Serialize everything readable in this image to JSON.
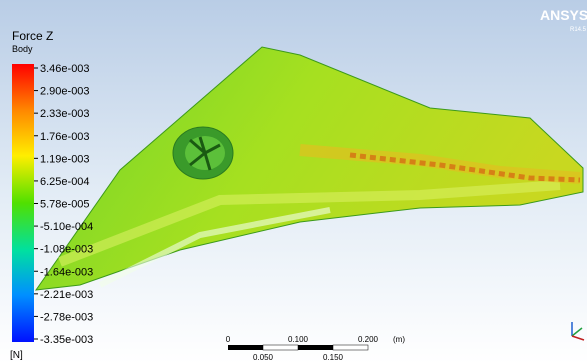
{
  "legend": {
    "title": "Force Z",
    "subtitle": "Body",
    "unit": "[N]",
    "levels": [
      "3.46e-003",
      "2.90e-003",
      "2.33e-003",
      "1.76e-003",
      "1.19e-003",
      "6.25e-004",
      "5.78e-005",
      "-5.10e-004",
      "-1.08e-003",
      "-1.64e-003",
      "-2.21e-003",
      "-2.78e-003",
      "-3.35e-003"
    ]
  },
  "scale_bar": {
    "top_labels": [
      "0",
      "0.100",
      "0.200"
    ],
    "unit": "(m)",
    "bottom_labels": [
      "0.050",
      "0.150"
    ]
  },
  "logo": {
    "name": "ANSYS",
    "version": "R14.5"
  }
}
